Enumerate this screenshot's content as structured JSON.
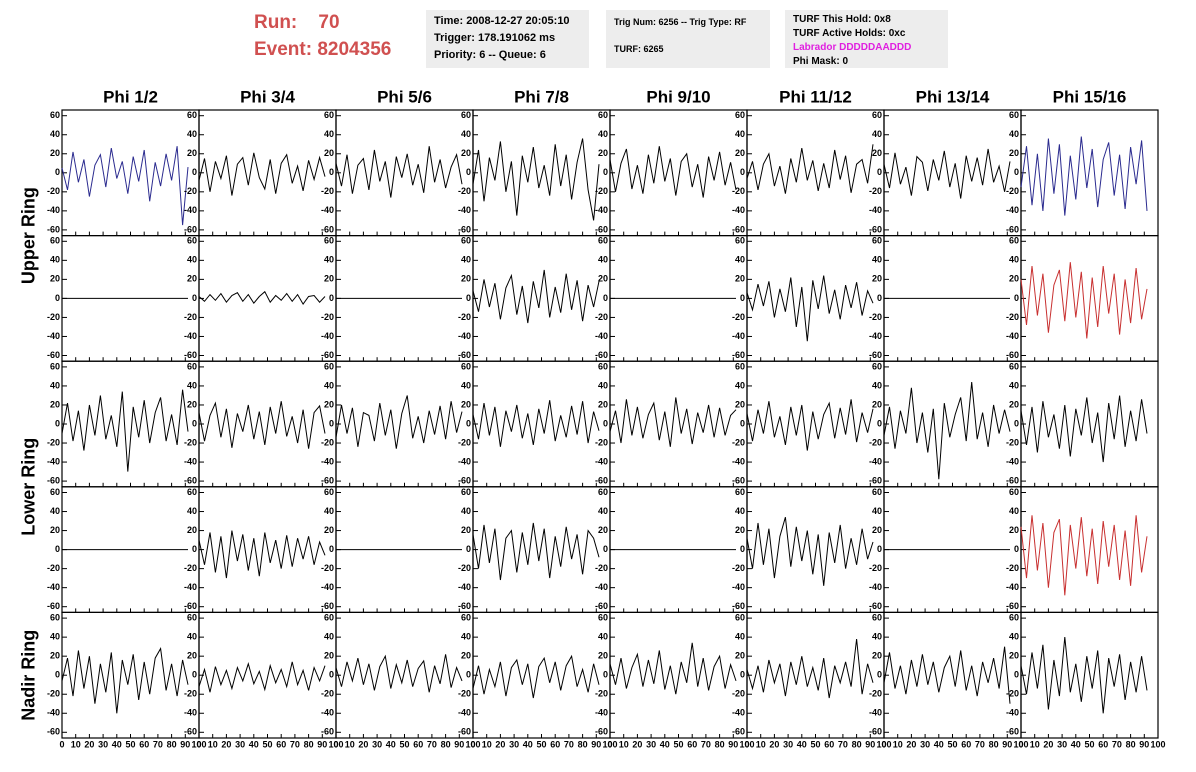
{
  "header": {
    "run_label": "Run:",
    "run": "70",
    "event_label": "Event:",
    "event": "8204356"
  },
  "info": [
    [
      "Time: 2008-12-27 20:05:10",
      "Trigger: 178.191062 ms",
      "Priority: 6 -- Queue: 6"
    ],
    [
      "Trig Num: 6256 -- Trig Type: RF",
      "TURF: 6265"
    ],
    [
      "TURF This Hold: 0x8",
      "TURF Active Holds: 0xc",
      "Labrador DDDDDAADDD",
      "Phi Mask: 0"
    ]
  ],
  "columns": [
    "Phi 1/2",
    "Phi 3/4",
    "Phi 5/6",
    "Phi 7/8",
    "Phi 9/10",
    "Phi 11/12",
    "Phi 13/14",
    "Phi 15/16"
  ],
  "rings": [
    "Upper Ring",
    "Lower Ring",
    "Nadir Ring"
  ],
  "ylim": [
    -66,
    66
  ],
  "yticks": [
    -60,
    -40,
    -20,
    0,
    20,
    40,
    60
  ],
  "xlim": [
    0,
    100
  ],
  "xticks": [
    0,
    10,
    20,
    30,
    40,
    50,
    60,
    70,
    80,
    90,
    100
  ],
  "x": [
    0,
    4,
    8,
    12,
    16,
    20,
    24,
    28,
    32,
    36,
    40,
    44,
    48,
    52,
    56,
    60,
    64,
    68,
    72,
    76,
    80,
    84,
    88,
    92
  ],
  "chart_data": [
    {
      "type": "line",
      "color": "#2b2b8f",
      "values": [
        5,
        -18,
        22,
        -10,
        14,
        -25,
        8,
        19,
        -15,
        26,
        -6,
        12,
        -22,
        17,
        -9,
        24,
        -30,
        11,
        -14,
        20,
        -8,
        28,
        -55,
        6
      ]
    },
    {
      "type": "line",
      "color": "#000000",
      "values": [
        -8,
        15,
        -20,
        12,
        -6,
        18,
        -24,
        9,
        16,
        -13,
        21,
        -5,
        -17,
        14,
        -22,
        10,
        19,
        -11,
        7,
        -19,
        13,
        -7,
        16,
        -4
      ]
    },
    {
      "type": "line",
      "color": "#000000",
      "values": [
        10,
        -14,
        19,
        -22,
        8,
        15,
        -18,
        24,
        -9,
        12,
        -26,
        17,
        -5,
        20,
        -13,
        9,
        -21,
        28,
        -10,
        14,
        -16,
        6,
        19,
        -12
      ]
    },
    {
      "type": "line",
      "color": "#000000",
      "values": [
        -12,
        24,
        -30,
        16,
        -8,
        33,
        -20,
        12,
        -45,
        18,
        -10,
        27,
        -16,
        8,
        -24,
        30,
        -14,
        19,
        -28,
        11,
        36,
        -18,
        -50,
        9
      ]
    },
    {
      "type": "line",
      "color": "#000000",
      "values": [
        14,
        -20,
        10,
        25,
        -17,
        8,
        -22,
        19,
        -11,
        28,
        -9,
        15,
        -24,
        12,
        20,
        -15,
        9,
        -26,
        17,
        -8,
        22,
        -13,
        11,
        -18
      ]
    },
    {
      "type": "line",
      "color": "#000000",
      "values": [
        -6,
        12,
        -18,
        9,
        20,
        -14,
        7,
        -22,
        15,
        -10,
        26,
        -8,
        13,
        -19,
        10,
        -16,
        24,
        -7,
        18,
        -21,
        9,
        14,
        -11,
        30
      ]
    },
    {
      "type": "line",
      "color": "#000000",
      "values": [
        9,
        -16,
        21,
        -12,
        6,
        -24,
        17,
        11,
        -19,
        14,
        -8,
        23,
        -15,
        10,
        -27,
        18,
        -9,
        16,
        -13,
        25,
        -10,
        7,
        -20,
        12
      ]
    },
    {
      "type": "line",
      "color": "#2b2b8f",
      "values": [
        -15,
        28,
        -34,
        20,
        -40,
        36,
        -22,
        30,
        -45,
        18,
        -28,
        38,
        -16,
        25,
        -36,
        14,
        32,
        -24,
        19,
        -38,
        27,
        -12,
        34,
        -40
      ]
    },
    {
      "type": "line",
      "color": "#000000",
      "values": [
        0,
        0,
        0,
        0,
        0,
        0,
        0,
        0,
        0,
        0,
        0,
        0,
        0,
        0,
        0,
        0,
        0,
        0,
        0,
        0,
        0,
        0,
        0,
        0
      ]
    },
    {
      "type": "line",
      "color": "#000000",
      "values": [
        2,
        -3,
        4,
        -2,
        5,
        -4,
        3,
        6,
        -3,
        4,
        -5,
        2,
        7,
        -4,
        3,
        -2,
        5,
        -3,
        4,
        -6,
        2,
        3,
        -4,
        2
      ]
    },
    {
      "type": "line",
      "color": "#000000",
      "values": [
        0,
        0,
        0,
        0,
        0,
        0,
        0,
        0,
        0,
        0,
        0,
        0,
        0,
        0,
        0,
        0,
        0,
        0,
        0,
        0,
        0,
        0,
        0,
        0
      ]
    },
    {
      "type": "line",
      "color": "#000000",
      "values": [
        8,
        -14,
        20,
        -9,
        16,
        -22,
        11,
        24,
        -17,
        13,
        -26,
        18,
        -10,
        30,
        -20,
        12,
        -15,
        26,
        -12,
        19,
        -24,
        14,
        -9,
        18
      ]
    },
    {
      "type": "line",
      "color": "#000000",
      "values": [
        0,
        0,
        0,
        0,
        0,
        0,
        0,
        0,
        0,
        0,
        0,
        0,
        0,
        0,
        0,
        0,
        0,
        0,
        0,
        0,
        0,
        0,
        0,
        0
      ]
    },
    {
      "type": "line",
      "color": "#000000",
      "values": [
        6,
        -12,
        15,
        -8,
        18,
        -20,
        10,
        -14,
        22,
        -30,
        12,
        -45,
        19,
        -11,
        24,
        -16,
        9,
        -22,
        14,
        -10,
        17,
        -18,
        8,
        -5
      ]
    },
    {
      "type": "line",
      "color": "#000000",
      "values": [
        0,
        0,
        0,
        0,
        0,
        0,
        0,
        0,
        0,
        0,
        0,
        0,
        0,
        0,
        0,
        0,
        0,
        0,
        0,
        0,
        0,
        0,
        0,
        0
      ]
    },
    {
      "type": "line",
      "color": "#c83030",
      "values": [
        20,
        -28,
        34,
        -18,
        26,
        -36,
        14,
        30,
        -24,
        38,
        -20,
        28,
        -42,
        22,
        -30,
        34,
        -16,
        26,
        -38,
        20,
        -26,
        32,
        -22,
        10
      ]
    },
    {
      "type": "line",
      "color": "#000000",
      "values": [
        -10,
        22,
        -18,
        14,
        -28,
        20,
        -12,
        30,
        -16,
        9,
        -24,
        34,
        -50,
        18,
        -14,
        25,
        -20,
        12,
        28,
        -18,
        10,
        -22,
        36,
        -8
      ]
    },
    {
      "type": "line",
      "color": "#000000",
      "values": [
        12,
        -18,
        9,
        22,
        -14,
        16,
        -25,
        11,
        -8,
        20,
        -16,
        13,
        -22,
        18,
        -10,
        24,
        -13,
        8,
        -20,
        15,
        -26,
        12,
        19,
        -10
      ]
    },
    {
      "type": "line",
      "color": "#000000",
      "values": [
        -14,
        20,
        -10,
        17,
        -24,
        12,
        9,
        -18,
        22,
        -12,
        15,
        -26,
        11,
        30,
        -15,
        8,
        -20,
        14,
        -11,
        19,
        -16,
        24,
        -9,
        13
      ]
    },
    {
      "type": "line",
      "color": "#000000",
      "values": [
        10,
        -16,
        22,
        -12,
        18,
        -24,
        14,
        -8,
        20,
        -15,
        11,
        -22,
        16,
        -10,
        25,
        -18,
        9,
        -14,
        19,
        -11,
        24,
        -20,
        13,
        -7
      ]
    },
    {
      "type": "line",
      "color": "#000000",
      "values": [
        -8,
        14,
        -20,
        26,
        -12,
        18,
        -15,
        10,
        22,
        -17,
        13,
        -24,
        28,
        -10,
        16,
        -21,
        12,
        -9,
        20,
        -14,
        17,
        -12,
        9,
        15
      ]
    },
    {
      "type": "line",
      "color": "#000000",
      "values": [
        11,
        -18,
        15,
        -10,
        24,
        -14,
        8,
        -22,
        18,
        -12,
        20,
        -28,
        13,
        -16,
        10,
        22,
        -15,
        17,
        -11,
        26,
        -19,
        12,
        -9,
        16
      ]
    },
    {
      "type": "line",
      "color": "#000000",
      "values": [
        -12,
        18,
        -26,
        14,
        -10,
        38,
        -20,
        12,
        -30,
        16,
        -58,
        22,
        -14,
        10,
        28,
        -18,
        44,
        -16,
        12,
        -24,
        20,
        -10,
        15,
        -8
      ]
    },
    {
      "type": "line",
      "color": "#000000",
      "values": [
        14,
        -22,
        18,
        -30,
        24,
        -14,
        10,
        -26,
        20,
        -34,
        16,
        -12,
        28,
        -20,
        12,
        -40,
        22,
        -16,
        30,
        -24,
        14,
        -18,
        26,
        -10
      ]
    },
    {
      "type": "line",
      "color": "#000000",
      "values": [
        0,
        0,
        0,
        0,
        0,
        0,
        0,
        0,
        0,
        0,
        0,
        0,
        0,
        0,
        0,
        0,
        0,
        0,
        0,
        0,
        0,
        0,
        0,
        0
      ]
    },
    {
      "type": "line",
      "color": "#000000",
      "values": [
        10,
        -16,
        18,
        -24,
        14,
        -30,
        20,
        -12,
        16,
        -22,
        12,
        -28,
        18,
        -14,
        10,
        -20,
        15,
        -18,
        12,
        -10,
        14,
        -16,
        8,
        -6
      ]
    },
    {
      "type": "line",
      "color": "#000000",
      "values": [
        0,
        0,
        0,
        0,
        0,
        0,
        0,
        0,
        0,
        0,
        0,
        0,
        0,
        0,
        0,
        0,
        0,
        0,
        0,
        0,
        0,
        0,
        0,
        0
      ]
    },
    {
      "type": "line",
      "color": "#000000",
      "values": [
        16,
        -20,
        26,
        -14,
        22,
        -32,
        12,
        20,
        -24,
        18,
        -16,
        28,
        -12,
        22,
        -30,
        14,
        -18,
        24,
        -10,
        16,
        -26,
        20,
        12,
        -8
      ]
    },
    {
      "type": "line",
      "color": "#000000",
      "values": [
        0,
        0,
        0,
        0,
        0,
        0,
        0,
        0,
        0,
        0,
        0,
        0,
        0,
        0,
        0,
        0,
        0,
        0,
        0,
        0,
        0,
        0,
        0,
        0
      ]
    },
    {
      "type": "line",
      "color": "#000000",
      "values": [
        12,
        -20,
        28,
        -16,
        22,
        -30,
        14,
        34,
        -18,
        24,
        -12,
        20,
        -26,
        16,
        -38,
        18,
        -14,
        26,
        -20,
        12,
        -16,
        22,
        -10,
        8
      ]
    },
    {
      "type": "line",
      "color": "#000000",
      "values": [
        0,
        0,
        0,
        0,
        0,
        0,
        0,
        0,
        0,
        0,
        0,
        0,
        0,
        0,
        0,
        0,
        0,
        0,
        0,
        0,
        0,
        0,
        0,
        0
      ]
    },
    {
      "type": "line",
      "color": "#c83030",
      "values": [
        24,
        -30,
        36,
        -22,
        28,
        -40,
        18,
        32,
        -48,
        26,
        -20,
        34,
        -28,
        22,
        -36,
        30,
        -18,
        26,
        -32,
        20,
        -38,
        36,
        -24,
        14
      ]
    },
    {
      "type": "line",
      "color": "#000000",
      "values": [
        -6,
        18,
        -22,
        26,
        -14,
        20,
        -30,
        12,
        -18,
        24,
        -40,
        16,
        -10,
        22,
        -26,
        14,
        -20,
        18,
        28,
        -16,
        12,
        -22,
        16,
        -10
      ]
    },
    {
      "type": "line",
      "color": "#000000",
      "values": [
        -12,
        6,
        -18,
        9,
        -10,
        5,
        -14,
        8,
        -6,
        12,
        -9,
        4,
        -15,
        10,
        -8,
        6,
        -12,
        14,
        -10,
        5,
        -16,
        8,
        -6,
        10
      ]
    },
    {
      "type": "line",
      "color": "#000000",
      "values": [
        8,
        -12,
        14,
        -6,
        18,
        -10,
        12,
        -16,
        9,
        20,
        -14,
        11,
        -8,
        16,
        -12,
        7,
        15,
        -18,
        10,
        -9,
        22,
        -13,
        8,
        -6
      ]
    },
    {
      "type": "line",
      "color": "#000000",
      "values": [
        -14,
        10,
        -20,
        6,
        -12,
        14,
        -22,
        8,
        16,
        -10,
        12,
        -24,
        9,
        18,
        -8,
        14,
        -16,
        10,
        20,
        -12,
        6,
        -18,
        12,
        -10
      ]
    },
    {
      "type": "line",
      "color": "#000000",
      "values": [
        12,
        -10,
        18,
        -14,
        8,
        22,
        -12,
        16,
        -9,
        26,
        -15,
        10,
        -20,
        14,
        -8,
        34,
        -12,
        18,
        -16,
        9,
        20,
        -14,
        11,
        -6
      ]
    },
    {
      "type": "line",
      "color": "#000000",
      "values": [
        6,
        -14,
        10,
        -18,
        16,
        -8,
        12,
        -22,
        14,
        -10,
        20,
        -12,
        8,
        -16,
        18,
        -24,
        10,
        -8,
        14,
        -12,
        38,
        -20,
        12,
        -8
      ]
    },
    {
      "type": "line",
      "color": "#000000",
      "values": [
        -8,
        24,
        -14,
        10,
        -20,
        16,
        -12,
        22,
        -10,
        14,
        -18,
        8,
        20,
        -12,
        26,
        -16,
        10,
        -22,
        14,
        -8,
        18,
        -14,
        30,
        -30
      ]
    },
    {
      "type": "line",
      "color": "#000000",
      "values": [
        10,
        -20,
        24,
        -14,
        32,
        -36,
        16,
        -22,
        40,
        -18,
        12,
        -28,
        20,
        -14,
        26,
        -40,
        18,
        -12,
        22,
        -26,
        14,
        -18,
        20,
        -16
      ]
    }
  ]
}
